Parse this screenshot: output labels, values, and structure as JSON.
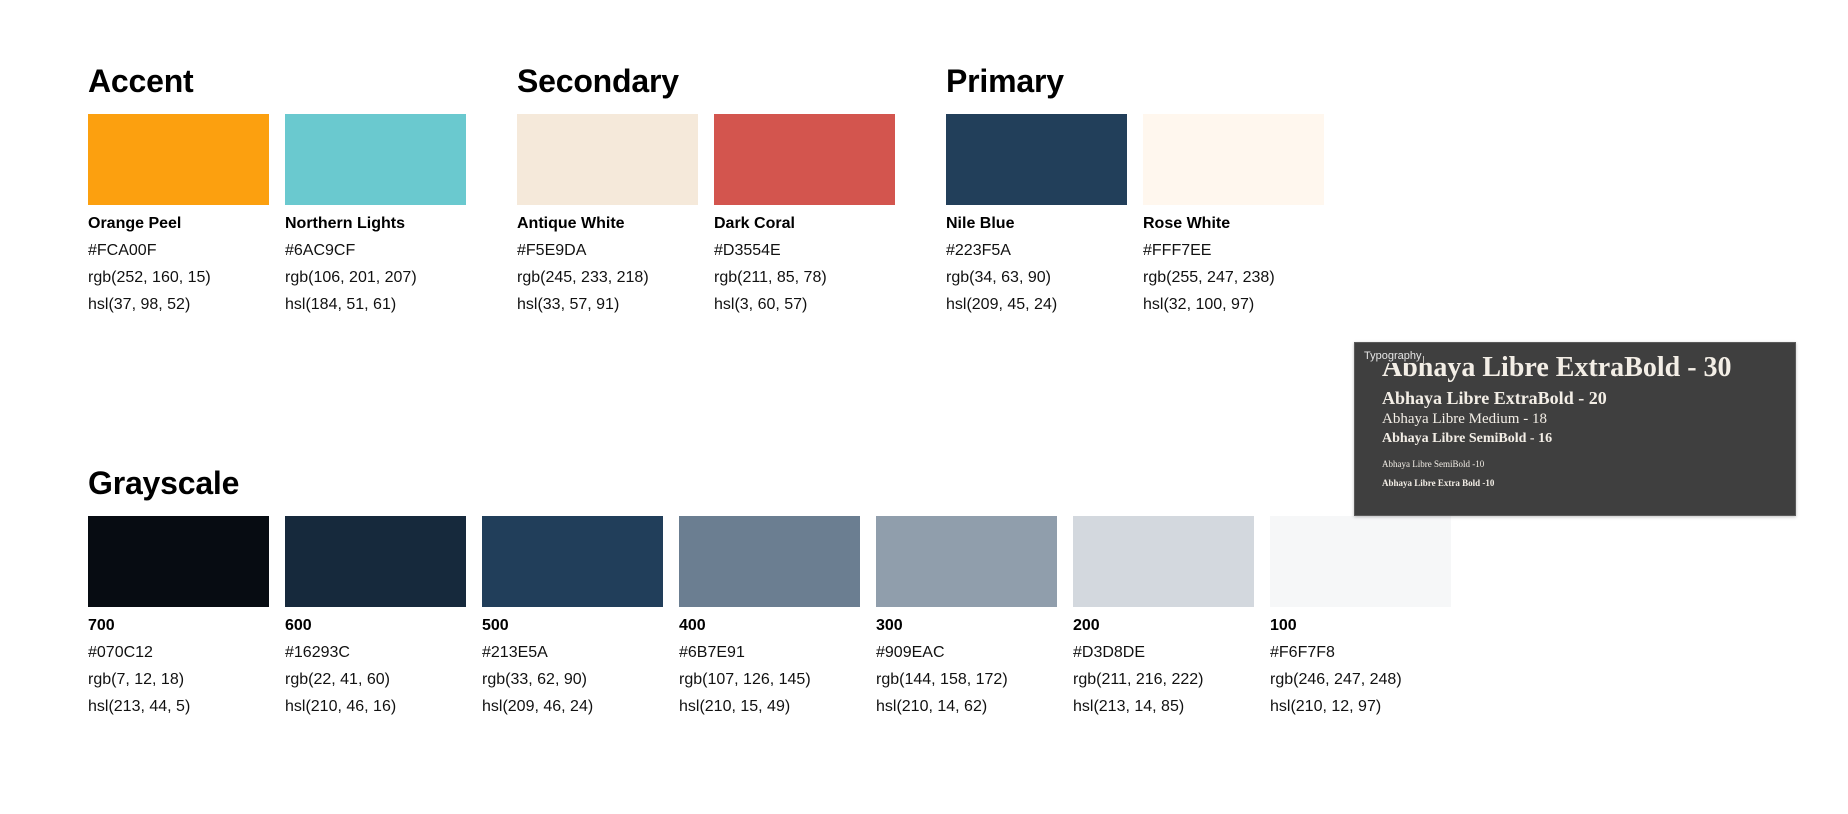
{
  "groups": {
    "accent": {
      "title": "Accent",
      "swatches": [
        {
          "name": "Orange Peel",
          "hex": "#FCA00F",
          "rgb": "rgb(252, 160, 15)",
          "hsl": "hsl(37, 98, 52)",
          "color": "#FCA00F"
        },
        {
          "name": "Northern Lights",
          "hex": "#6AC9CF",
          "rgb": "rgb(106, 201, 207)",
          "hsl": "hsl(184, 51, 61)",
          "color": "#6AC9CF"
        }
      ]
    },
    "secondary": {
      "title": "Secondary",
      "swatches": [
        {
          "name": "Antique White",
          "hex": "#F5E9DA",
          "rgb": "rgb(245, 233, 218)",
          "hsl": "hsl(33, 57, 91)",
          "color": "#F5E9DA"
        },
        {
          "name": "Dark Coral",
          "hex": "#D3554E",
          "rgb": "rgb(211, 85, 78)",
          "hsl": "hsl(3, 60, 57)",
          "color": "#D3554E"
        }
      ]
    },
    "primary": {
      "title": "Primary",
      "swatches": [
        {
          "name": "Nile Blue",
          "hex": "#223F5A",
          "rgb": "rgb(34, 63, 90)",
          "hsl": "hsl(209, 45, 24)",
          "color": "#223F5A"
        },
        {
          "name": "Rose White",
          "hex": "#FFF7EE",
          "rgb": "rgb(255, 247, 238)",
          "hsl": "hsl(32, 100, 97)",
          "color": "#FFF7EE"
        }
      ]
    },
    "grayscale": {
      "title": "Grayscale",
      "swatches": [
        {
          "name": "700",
          "hex": "#070C12",
          "rgb": "rgb(7, 12, 18)",
          "hsl": "hsl(213, 44, 5)",
          "color": "#070C12"
        },
        {
          "name": "600",
          "hex": "#16293C",
          "rgb": "rgb(22, 41, 60)",
          "hsl": "hsl(210, 46, 16)",
          "color": "#16293C"
        },
        {
          "name": "500",
          "hex": "#213E5A",
          "rgb": "rgb(33, 62, 90)",
          "hsl": "hsl(209, 46, 24)",
          "color": "#213E5A"
        },
        {
          "name": "400",
          "hex": "#6B7E91",
          "rgb": "rgb(107, 126, 145)",
          "hsl": "hsl(210, 15, 49)",
          "color": "#6B7E91"
        },
        {
          "name": "300",
          "hex": "#909EAC",
          "rgb": "rgb(144, 158, 172)",
          "hsl": "hsl(210, 14, 62)",
          "color": "#909EAC"
        },
        {
          "name": "200",
          "hex": "#D3D8DE",
          "rgb": "rgb(211, 216, 222)",
          "hsl": "hsl(213, 14, 85)",
          "color": "#D3D8DE"
        },
        {
          "name": "100",
          "hex": "#F6F7F8",
          "rgb": "rgb(246, 247, 248)",
          "hsl": "hsl(210, 12, 97)",
          "color": "#F6F7F8"
        }
      ]
    }
  },
  "typography": {
    "label": "Typography",
    "samples": [
      "Abhaya Libre ExtraBold - 30",
      "Abhaya Libre ExtraBold - 20",
      "Abhaya Libre Medium - 18",
      "Abhaya Libre SemiBold - 16",
      "Abhaya Libre SemiBold -10",
      "Abhaya Libre Extra Bold -10"
    ]
  }
}
